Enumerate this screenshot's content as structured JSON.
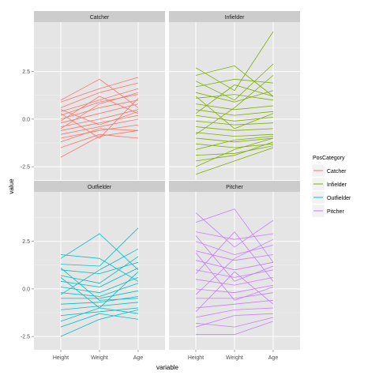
{
  "chart_data": {
    "type": "line",
    "subtype": "faceted-parallel-coordinates",
    "title": "",
    "xlabel": "variable",
    "ylabel": "value",
    "x": [
      "Height",
      "Weight",
      "Age"
    ],
    "yticks": [
      -2.5,
      0.0,
      2.5
    ],
    "ytick_labels": [
      "-2.5",
      "0.0",
      "2.5"
    ],
    "ylim": [
      -3.2,
      5.1
    ],
    "grid": true,
    "legend": {
      "title": "PosCategory",
      "position": "right",
      "entries": [
        "Catcher",
        "Infielder",
        "Outfielder",
        "Pitcher"
      ]
    },
    "facets": [
      "Catcher",
      "Infielder",
      "Outfielder",
      "Pitcher"
    ],
    "colors": {
      "Catcher": "#F8766D",
      "Infielder": "#7CAE00",
      "Outfielder": "#00BFC4",
      "Pitcher": "#C77CFF"
    },
    "series": [
      {
        "name": "Catcher",
        "values": [
          [
            1.0,
            2.1,
            0.6
          ],
          [
            0.9,
            1.6,
            2.2
          ],
          [
            0.6,
            1.4,
            1.9
          ],
          [
            0.4,
            1.0,
            1.6
          ],
          [
            0.2,
            0.9,
            1.3
          ],
          [
            0.0,
            0.6,
            1.0
          ],
          [
            -0.2,
            0.3,
            0.8
          ],
          [
            -0.4,
            0.0,
            0.5
          ],
          [
            -0.6,
            -0.2,
            0.2
          ],
          [
            -0.8,
            -0.4,
            0.0
          ],
          [
            -1.0,
            -0.6,
            -0.3
          ],
          [
            -1.2,
            -0.5,
            -0.6
          ],
          [
            -1.5,
            -0.8,
            -1.0
          ],
          [
            -2.0,
            -0.9,
            -0.6
          ],
          [
            -0.5,
            0.8,
            1.4
          ],
          [
            0.5,
            -0.3,
            0.4
          ],
          [
            -0.1,
            1.2,
            0.3
          ],
          [
            0.3,
            -1.0,
            1.1
          ]
        ]
      },
      {
        "name": "Infielder",
        "values": [
          [
            2.7,
            1.5,
            4.6
          ],
          [
            2.3,
            2.8,
            1.2
          ],
          [
            2.0,
            1.0,
            2.9
          ],
          [
            1.7,
            2.1,
            1.9
          ],
          [
            1.4,
            0.9,
            1.5
          ],
          [
            1.1,
            1.3,
            1.0
          ],
          [
            0.8,
            0.5,
            0.7
          ],
          [
            0.5,
            0.2,
            0.4
          ],
          [
            0.2,
            -0.1,
            0.1
          ],
          [
            -0.1,
            -0.3,
            -0.2
          ],
          [
            -0.4,
            -0.6,
            -0.5
          ],
          [
            -0.7,
            -0.9,
            -0.8
          ],
          [
            -1.0,
            -1.2,
            -1.0
          ],
          [
            -1.3,
            -1.5,
            -1.3
          ],
          [
            -1.6,
            -1.1,
            -0.9
          ],
          [
            -1.9,
            -1.8,
            -1.4
          ],
          [
            -2.2,
            -1.9,
            -1.2
          ],
          [
            -2.5,
            -1.6,
            -1.0
          ],
          [
            -2.9,
            -2.2,
            -1.5
          ],
          [
            0.3,
            1.8,
            1.2
          ],
          [
            -0.8,
            0.6,
            2.3
          ],
          [
            1.2,
            -0.5,
            0.3
          ]
        ]
      },
      {
        "name": "Outfielder",
        "values": [
          [
            1.8,
            1.6,
            0.4
          ],
          [
            1.6,
            2.9,
            1.0
          ],
          [
            1.3,
            1.2,
            3.2
          ],
          [
            1.0,
            0.8,
            1.4
          ],
          [
            0.7,
            0.3,
            1.7
          ],
          [
            0.4,
            0.1,
            1.1
          ],
          [
            0.1,
            -0.2,
            0.6
          ],
          [
            -0.2,
            -0.4,
            0.3
          ],
          [
            -0.5,
            -0.5,
            -0.1
          ],
          [
            -0.8,
            -0.7,
            -0.4
          ],
          [
            -1.1,
            -0.9,
            -0.7
          ],
          [
            -1.4,
            -1.2,
            -1.0
          ],
          [
            -1.7,
            -1.0,
            -1.3
          ],
          [
            -2.0,
            -1.3,
            -1.6
          ],
          [
            -2.5,
            -1.6,
            -1.1
          ],
          [
            0.6,
            -1.0,
            0.9
          ],
          [
            -0.3,
            1.0,
            2.1
          ],
          [
            1.1,
            -0.6,
            -0.5
          ]
        ]
      },
      {
        "name": "Pitcher",
        "values": [
          [
            4.0,
            2.2,
            3.6
          ],
          [
            3.5,
            4.2,
            1.4
          ],
          [
            3.0,
            2.6,
            2.9
          ],
          [
            2.5,
            1.8,
            2.3
          ],
          [
            2.0,
            1.5,
            1.8
          ],
          [
            1.5,
            1.0,
            1.4
          ],
          [
            1.0,
            0.6,
            1.0
          ],
          [
            0.5,
            0.2,
            0.6
          ],
          [
            0.0,
            -0.2,
            0.2
          ],
          [
            -0.5,
            -0.5,
            -0.2
          ],
          [
            -1.0,
            -0.8,
            -0.6
          ],
          [
            -1.5,
            -1.1,
            -1.0
          ],
          [
            -2.0,
            -1.4,
            -1.3
          ],
          [
            -2.4,
            -2.4,
            -1.7
          ],
          [
            -1.8,
            -2.0,
            -1.5
          ],
          [
            0.8,
            3.0,
            0.4
          ],
          [
            -0.3,
            1.6,
            2.6
          ],
          [
            1.9,
            -0.6,
            0.1
          ],
          [
            -1.2,
            0.9,
            -0.8
          ],
          [
            2.8,
            0.4,
            1.2
          ]
        ]
      }
    ]
  }
}
